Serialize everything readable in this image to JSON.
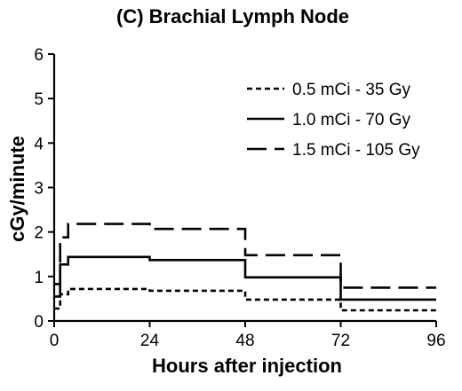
{
  "chart_data": {
    "type": "line",
    "title": "(C) Brachial Lymph Node",
    "xlabel": "Hours after injection",
    "ylabel": "cGy/minute",
    "xlim": [
      0,
      96
    ],
    "ylim": [
      0,
      6
    ],
    "xticks": [
      0,
      24,
      48,
      72,
      96
    ],
    "yticks": [
      0,
      1,
      2,
      3,
      4,
      5,
      6
    ],
    "legend_position": "top-right",
    "grid": false,
    "series": [
      {
        "name": "0.5 mCi - 35 Gy",
        "line_style": "dotted",
        "x": [
          0,
          1.5,
          1.5,
          3.5,
          3.5,
          24,
          24,
          48,
          48,
          72,
          72,
          96
        ],
        "y": [
          0.28,
          0.28,
          0.6,
          0.6,
          0.72,
          0.72,
          0.68,
          0.68,
          0.48,
          0.48,
          0.24,
          0.24
        ]
      },
      {
        "name": "1.0 mCi - 70 Gy",
        "line_style": "solid",
        "x": [
          0,
          1.5,
          1.5,
          3.5,
          3.5,
          24,
          24,
          48,
          48,
          72,
          72,
          96
        ],
        "y": [
          0.55,
          0.55,
          1.27,
          1.27,
          1.44,
          1.44,
          1.37,
          1.37,
          0.98,
          0.98,
          0.48,
          0.48
        ]
      },
      {
        "name": "1.5 mCi - 105 Gy",
        "line_style": "dashed",
        "x": [
          0,
          1.5,
          1.5,
          3.5,
          3.5,
          24,
          24,
          48,
          48,
          72,
          72,
          96
        ],
        "y": [
          0.83,
          0.83,
          1.88,
          1.88,
          2.18,
          2.18,
          2.07,
          2.07,
          1.48,
          1.48,
          0.75,
          0.75
        ]
      }
    ]
  }
}
